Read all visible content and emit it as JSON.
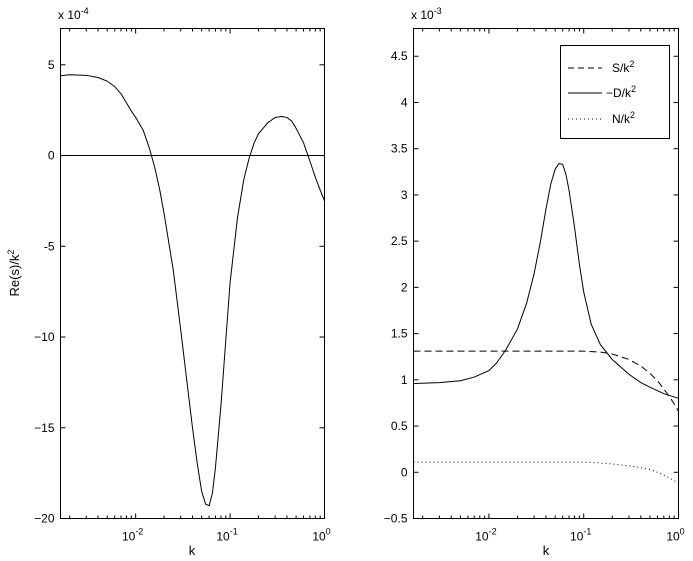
{
  "chart_data": [
    {
      "type": "line",
      "xscale": "log",
      "xlim": [
        0.0016,
        1
      ],
      "ylim": [
        -20,
        7
      ],
      "xlabel": "k",
      "ylabel_main": "Re(s)/k",
      "ylabel_sup": "2",
      "yexp_base": "x 10",
      "yexp_power": "-4",
      "xticks": [
        {
          "value": 0.01,
          "base": "10",
          "exp": "-2"
        },
        {
          "value": 0.1,
          "base": "10",
          "exp": "-1"
        },
        {
          "value": 1,
          "base": "10",
          "exp": "0"
        }
      ],
      "yticks": [
        {
          "value": 5,
          "label": "5"
        },
        {
          "value": 0,
          "label": "0"
        },
        {
          "value": -5,
          "label": "-5"
        },
        {
          "value": -10,
          "label": "−10"
        },
        {
          "value": -15,
          "label": "−15"
        },
        {
          "value": -20,
          "label": "−20"
        }
      ],
      "hline": 0,
      "series": [
        {
          "style": "solid",
          "x": [
            0.0016,
            0.002,
            0.003,
            0.004,
            0.005,
            0.006,
            0.007,
            0.008,
            0.009,
            0.01,
            0.012,
            0.014,
            0.016,
            0.018,
            0.02,
            0.025,
            0.03,
            0.035,
            0.04,
            0.045,
            0.05,
            0.055,
            0.06,
            0.065,
            0.07,
            0.08,
            0.09,
            0.1,
            0.12,
            0.14,
            0.16,
            0.18,
            0.2,
            0.25,
            0.3,
            0.35,
            0.4,
            0.45,
            0.5,
            0.6,
            0.7,
            0.8,
            0.9,
            1.0
          ],
          "y": [
            4.4,
            4.45,
            4.42,
            4.3,
            4.1,
            3.8,
            3.4,
            2.9,
            2.45,
            2.1,
            1.4,
            0.4,
            -0.7,
            -1.9,
            -3.2,
            -6.3,
            -9.6,
            -12.5,
            -15.0,
            -17.0,
            -18.5,
            -19.2,
            -19.3,
            -18.6,
            -17.2,
            -13.8,
            -10.2,
            -7.0,
            -3.4,
            -1.3,
            -0.1,
            0.7,
            1.2,
            1.8,
            2.1,
            2.15,
            2.1,
            1.9,
            1.5,
            0.7,
            -0.3,
            -1.2,
            -1.9,
            -2.5
          ]
        }
      ]
    },
    {
      "type": "line",
      "xscale": "log",
      "xlim": [
        0.0016,
        1
      ],
      "ylim": [
        -0.5,
        4.8
      ],
      "xlabel": "k",
      "yexp_base": "x 10",
      "yexp_power": "-3",
      "xticks": [
        {
          "value": 0.01,
          "base": "10",
          "exp": "-2"
        },
        {
          "value": 0.1,
          "base": "10",
          "exp": "-1"
        },
        {
          "value": 1,
          "base": "10",
          "exp": "0"
        }
      ],
      "yticks": [
        {
          "value": 4.5,
          "label": "4.5"
        },
        {
          "value": 4,
          "label": "4"
        },
        {
          "value": 3.5,
          "label": "3.5"
        },
        {
          "value": 3,
          "label": "3"
        },
        {
          "value": 2.5,
          "label": "2.5"
        },
        {
          "value": 2,
          "label": "2"
        },
        {
          "value": 1.5,
          "label": "1.5"
        },
        {
          "value": 1,
          "label": "1"
        },
        {
          "value": 0.5,
          "label": "0.5"
        },
        {
          "value": 0,
          "label": "0"
        },
        {
          "value": -0.5,
          "label": "−0.5"
        }
      ],
      "legend_position": "top-right",
      "series": [
        {
          "legend_base": "S/k",
          "legend_sup": "2",
          "style": "dashed",
          "x": [
            0.0016,
            0.005,
            0.01,
            0.02,
            0.05,
            0.1,
            0.15,
            0.2,
            0.3,
            0.4,
            0.5,
            0.6,
            0.7,
            0.8,
            0.9,
            1.0
          ],
          "y": [
            1.31,
            1.31,
            1.31,
            1.31,
            1.31,
            1.31,
            1.3,
            1.28,
            1.22,
            1.15,
            1.07,
            0.99,
            0.9,
            0.82,
            0.74,
            0.66
          ]
        },
        {
          "legend_base": "−D/k",
          "legend_sup": "2",
          "style": "solid",
          "x": [
            0.0016,
            0.003,
            0.005,
            0.007,
            0.01,
            0.012,
            0.015,
            0.02,
            0.025,
            0.03,
            0.035,
            0.04,
            0.045,
            0.05,
            0.055,
            0.06,
            0.065,
            0.07,
            0.08,
            0.09,
            0.1,
            0.12,
            0.15,
            0.2,
            0.3,
            0.4,
            0.5,
            0.7,
            1.0
          ],
          "y": [
            0.96,
            0.97,
            0.99,
            1.03,
            1.1,
            1.18,
            1.32,
            1.55,
            1.83,
            2.15,
            2.5,
            2.85,
            3.12,
            3.28,
            3.34,
            3.33,
            3.22,
            3.05,
            2.65,
            2.25,
            1.95,
            1.6,
            1.38,
            1.22,
            1.06,
            0.97,
            0.92,
            0.85,
            0.8
          ]
        },
        {
          "legend_base": "N/k",
          "legend_sup": "2",
          "style": "dotted",
          "x": [
            0.0016,
            0.005,
            0.01,
            0.02,
            0.05,
            0.1,
            0.15,
            0.2,
            0.3,
            0.4,
            0.5,
            0.6,
            0.7,
            0.8,
            0.9,
            1.0
          ],
          "y": [
            0.11,
            0.11,
            0.11,
            0.11,
            0.11,
            0.11,
            0.1,
            0.09,
            0.07,
            0.05,
            0.03,
            0.0,
            -0.03,
            -0.06,
            -0.09,
            -0.12
          ]
        }
      ]
    }
  ]
}
